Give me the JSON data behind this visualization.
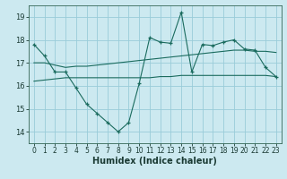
{
  "xlabel": "Humidex (Indice chaleur)",
  "background_color": "#cce9f0",
  "grid_color": "#99ccd9",
  "line_color": "#1a6b5e",
  "x_data": [
    0,
    1,
    2,
    3,
    4,
    5,
    6,
    7,
    8,
    9,
    10,
    11,
    12,
    13,
    14,
    15,
    16,
    17,
    18,
    19,
    20,
    21,
    22,
    23
  ],
  "y_main": [
    17.8,
    17.3,
    16.6,
    16.6,
    15.9,
    15.2,
    14.8,
    14.4,
    14.0,
    14.4,
    16.1,
    18.1,
    17.9,
    17.85,
    19.2,
    16.6,
    17.8,
    17.75,
    17.9,
    18.0,
    17.6,
    17.55,
    16.8,
    16.4
  ],
  "y_line1": [
    17.0,
    17.0,
    16.9,
    16.8,
    16.85,
    16.85,
    16.9,
    16.95,
    17.0,
    17.05,
    17.1,
    17.15,
    17.2,
    17.25,
    17.3,
    17.35,
    17.4,
    17.45,
    17.5,
    17.55,
    17.55,
    17.5,
    17.5,
    17.45
  ],
  "y_line2": [
    16.2,
    16.25,
    16.3,
    16.35,
    16.35,
    16.35,
    16.35,
    16.35,
    16.35,
    16.35,
    16.35,
    16.35,
    16.4,
    16.4,
    16.45,
    16.45,
    16.45,
    16.45,
    16.45,
    16.45,
    16.45,
    16.45,
    16.45,
    16.4
  ],
  "ylim": [
    13.5,
    19.5
  ],
  "xlim": [
    -0.5,
    23.5
  ],
  "yticks": [
    14,
    15,
    16,
    17,
    18,
    19
  ],
  "xticks": [
    0,
    1,
    2,
    3,
    4,
    5,
    6,
    7,
    8,
    9,
    10,
    11,
    12,
    13,
    14,
    15,
    16,
    17,
    18,
    19,
    20,
    21,
    22,
    23
  ],
  "xlabel_fontsize": 7,
  "tick_fontsize": 5.5,
  "title_fontsize": 7
}
